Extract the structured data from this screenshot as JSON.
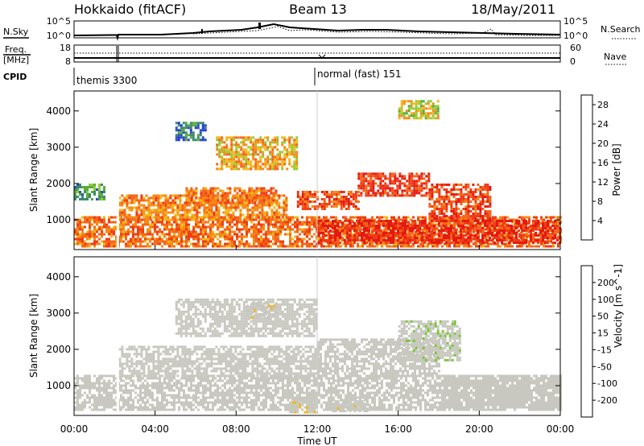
{
  "header": {
    "left_title": "Hokkaido (fitACF)",
    "center_title": "Beam 13",
    "right_title": "18/May/2011"
  },
  "strip_panels": {
    "nsky_label": "N.Sky",
    "nsky_ticks": [
      "10^5",
      "10^0"
    ],
    "nsearch_label": "N.Search",
    "freq_label_1": "Freq.",
    "freq_label_2": "[MHz]",
    "freq_ticks": [
      "18",
      "8"
    ],
    "nave_label": "Nave",
    "nave_ticks": [
      "60",
      "0"
    ],
    "cpid_label": "CPID",
    "cpid_modes": [
      {
        "label": "themis 3300",
        "start_hour": 0
      },
      {
        "label": "normal (fast) 151",
        "start_hour": 12
      }
    ]
  },
  "axes": {
    "x_label": "Time UT",
    "x_ticks": [
      "00:00",
      "04:00",
      "08:00",
      "12:00",
      "16:00",
      "20:00",
      "00:00"
    ],
    "x_range_hours": [
      0,
      24
    ],
    "y_label": "Slant Range [km]",
    "y_ticks": [
      "1000",
      "2000",
      "3000",
      "4000"
    ],
    "y_range_km": [
      180,
      4550
    ]
  },
  "chart_data": [
    {
      "type": "heatmap",
      "name": "power",
      "colorbar_label": "Power [dB]",
      "colorbar_ticks": [
        "4",
        "8",
        "12",
        "16",
        "20",
        "24",
        "28"
      ],
      "color_range": [
        0,
        30
      ],
      "colors": [
        "#1f33e6",
        "#2855b0",
        "#3a8a6e",
        "#5aaa3c",
        "#8ecf3a",
        "#f2b81a",
        "#f58a16",
        "#f5641a",
        "#ee3c16",
        "#e41a12"
      ],
      "regions": [
        {
          "t0": 0.0,
          "t1": 24.0,
          "r0": 250,
          "r1": 1100,
          "value": 22
        },
        {
          "t0": 2.2,
          "t1": 10.5,
          "r0": 1000,
          "r1": 1700,
          "value": 20
        },
        {
          "t0": 5.5,
          "t1": 10.0,
          "r0": 1500,
          "r1": 1900,
          "value": 22
        },
        {
          "t0": 7.0,
          "t1": 11.0,
          "r0": 2400,
          "r1": 3300,
          "value": 18
        },
        {
          "t0": 11.0,
          "t1": 14.0,
          "r0": 1300,
          "r1": 1800,
          "value": 24
        },
        {
          "t0": 14.0,
          "t1": 17.5,
          "r0": 1700,
          "r1": 2300,
          "value": 26
        },
        {
          "t0": 17.5,
          "t1": 20.5,
          "r0": 1000,
          "r1": 2000,
          "value": 25
        },
        {
          "t0": 12.0,
          "t1": 24.0,
          "r0": 350,
          "r1": 1000,
          "value": 27
        },
        {
          "t0": 5.0,
          "t1": 6.5,
          "r0": 3200,
          "r1": 3700,
          "value": 6
        },
        {
          "t0": 0.0,
          "t1": 1.5,
          "r0": 1600,
          "r1": 2000,
          "value": 10
        },
        {
          "t0": 16.0,
          "t1": 18.0,
          "r0": 3800,
          "r1": 4300,
          "value": 15
        }
      ]
    },
    {
      "type": "heatmap",
      "name": "velocity",
      "colorbar_label": "Velocity [m s^-1]",
      "colorbar_ticks": [
        "200",
        "100",
        "50",
        "15",
        "-15",
        "-50",
        "-100",
        "-200"
      ],
      "color_range": [
        -250,
        250
      ],
      "colors": [
        "#1f33e6",
        "#2a6ab0",
        "#3a8a6e",
        "#7cc43a",
        "#c8c8c0",
        "#f2b81a",
        "#f5841a",
        "#ee4016",
        "#e41a12"
      ],
      "regions": [
        {
          "t0": 0.0,
          "t1": 24.0,
          "r0": 350,
          "r1": 1300,
          "value": 0
        },
        {
          "t0": 2.2,
          "t1": 12.0,
          "r0": 1300,
          "r1": 2100,
          "value": 0
        },
        {
          "t0": 5.0,
          "t1": 12.0,
          "r0": 2400,
          "r1": 3400,
          "value": 0
        },
        {
          "t0": 8.5,
          "t1": 10.0,
          "r0": 2900,
          "r1": 3300,
          "value": -40
        },
        {
          "t0": 12.0,
          "t1": 18.0,
          "r0": 1300,
          "r1": 2300,
          "value": 0
        },
        {
          "t0": 16.0,
          "t1": 19.0,
          "r0": 1700,
          "r1": 2800,
          "value": 40
        },
        {
          "t0": 18.0,
          "t1": 24.0,
          "r0": 400,
          "r1": 1300,
          "value": 5
        },
        {
          "t0": 10.5,
          "t1": 12.0,
          "r0": 300,
          "r1": 700,
          "value": -40
        },
        {
          "t0": 12.5,
          "t1": 14.5,
          "r0": 300,
          "r1": 600,
          "value": -40
        }
      ]
    }
  ]
}
